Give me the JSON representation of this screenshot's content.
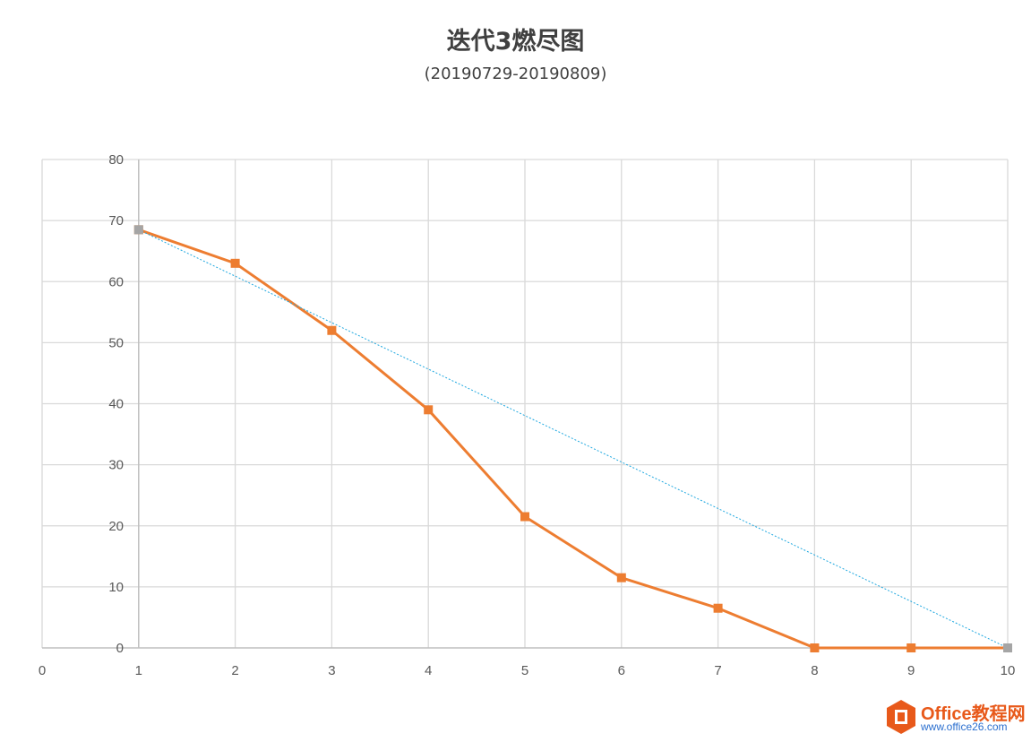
{
  "chart_data": {
    "type": "line",
    "title": "迭代3燃尽图",
    "subtitle": "(20190729-20190809)",
    "x": [
      1,
      2,
      3,
      4,
      5,
      6,
      7,
      8,
      9,
      10
    ],
    "xlim": [
      0,
      10
    ],
    "ylim": [
      0,
      80
    ],
    "x_ticks": [
      "0",
      "1",
      "2",
      "3",
      "4",
      "5",
      "6",
      "7",
      "8",
      "9",
      "10"
    ],
    "y_ticks": [
      "0",
      "10",
      "20",
      "30",
      "40",
      "50",
      "60",
      "70",
      "80"
    ],
    "grid": true,
    "legend": "none",
    "series": [
      {
        "values": [
          68.5,
          63,
          52,
          39,
          21.5,
          11.5,
          6.5,
          0,
          0,
          0
        ],
        "color": "#ed7d31",
        "style": "solid",
        "marker": "square"
      },
      {
        "values": [
          68.5,
          0
        ],
        "x": [
          1,
          10
        ],
        "color": "#1fa8e0",
        "style": "dotted",
        "marker": "square"
      }
    ]
  },
  "watermark": {
    "name": "Office教程网",
    "site": "www.office26.com",
    "icon": "office-logo-icon"
  }
}
